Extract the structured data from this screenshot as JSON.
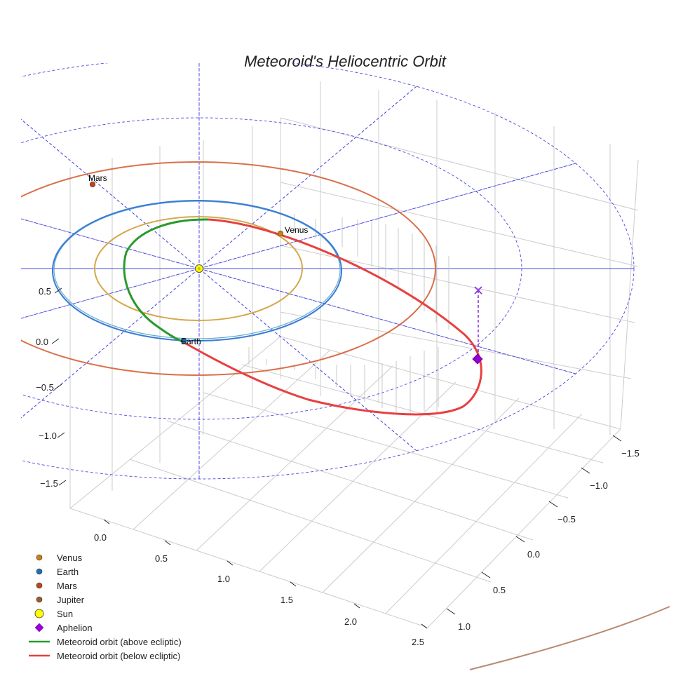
{
  "chart_data": {
    "type": "line",
    "title": "Meteoroid's Heliocentric Orbit",
    "x_axis": {
      "ticks": [
        "0.0",
        "0.5",
        "1.0",
        "1.5",
        "2.0",
        "2.5"
      ]
    },
    "y_axis": {
      "ticks": [
        "−1.5",
        "−1.0",
        "−0.5",
        "0.0",
        "0.5",
        "1.0"
      ]
    },
    "z_axis": {
      "ticks": [
        "0.5",
        "0.0",
        "−0.5",
        "−1.0",
        "−1.5"
      ]
    },
    "point_labels": {
      "mars": "Mars",
      "venus": "Venus",
      "earth": "Earth"
    },
    "series": [
      {
        "name": "Venus",
        "kind": "planet-orbit",
        "semi_major_au": 0.72,
        "color": "#d4a84b",
        "marker_color": "#c8811a"
      },
      {
        "name": "Earth",
        "kind": "planet-orbit",
        "semi_major_au": 1.0,
        "color": "#3a7cd6",
        "marker_color": "#1f6fb4"
      },
      {
        "name": "Mars",
        "kind": "planet-orbit",
        "semi_major_au": 1.52,
        "color": "#d9704a",
        "marker_color": "#c0451e"
      },
      {
        "name": "Jupiter",
        "kind": "planet-orbit",
        "semi_major_au": 5.2,
        "color": "#b88a70",
        "marker_color": "#9c5a2e"
      },
      {
        "name": "Sun",
        "kind": "point",
        "color": "#ffff00"
      },
      {
        "name": "Aphelion",
        "kind": "point",
        "color": "#9400d3"
      },
      {
        "name": "Meteoroid orbit (above ecliptic)",
        "kind": "orbit-segment",
        "color": "#2a9a2a"
      },
      {
        "name": "Meteoroid orbit (below ecliptic)",
        "kind": "orbit-segment",
        "color": "#e84040"
      }
    ],
    "grid": true,
    "legend_position": "bottom-left",
    "colors": {
      "reference_grid": "#4a4ae0",
      "pane_grid": "#cccccc",
      "aphelion_projection": "#8a2be2"
    }
  }
}
